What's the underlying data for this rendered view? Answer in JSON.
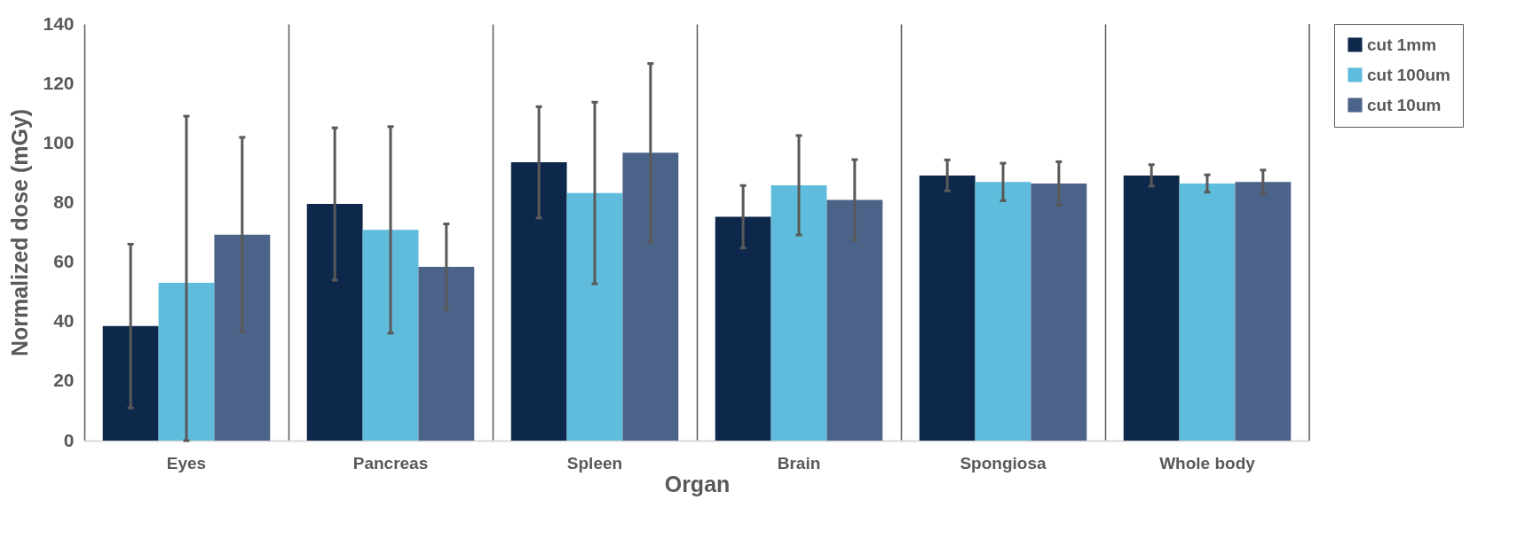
{
  "chart_data": {
    "type": "bar",
    "xlabel": "Organ",
    "ylabel": "Normalized dose (mGy)",
    "categories": [
      "Eyes",
      "Pancreas",
      "Spleen",
      "Brain",
      "Spongiosa",
      "Whole body"
    ],
    "series": [
      {
        "name": "cut 1mm",
        "color": "#0e284c",
        "values": [
          38.5,
          79.5,
          93.5,
          75.2,
          89.1,
          89.1
        ],
        "errors": [
          27.5,
          25.6,
          18.7,
          10.5,
          5.2,
          3.6
        ]
      },
      {
        "name": "cut 100um",
        "color": "#60bcdc",
        "values": [
          53,
          70.8,
          83.2,
          85.8,
          86.9,
          86.4
        ],
        "errors": [
          [
            0,
            109
          ],
          34.7,
          30.5,
          16.7,
          6.3,
          2.9
        ]
      },
      {
        "name": "cut 10um",
        "color": "#4b6388",
        "values": [
          69.2,
          58.4,
          96.7,
          80.9,
          86.4,
          86.9
        ],
        "errors": [
          32.7,
          14.4,
          30,
          13.5,
          7.3,
          4
        ]
      }
    ],
    "ylim": [
      0,
      140
    ],
    "yticks": [
      0,
      20,
      40,
      60,
      80,
      100,
      120,
      140
    ],
    "grid": "x",
    "legend": "right"
  }
}
